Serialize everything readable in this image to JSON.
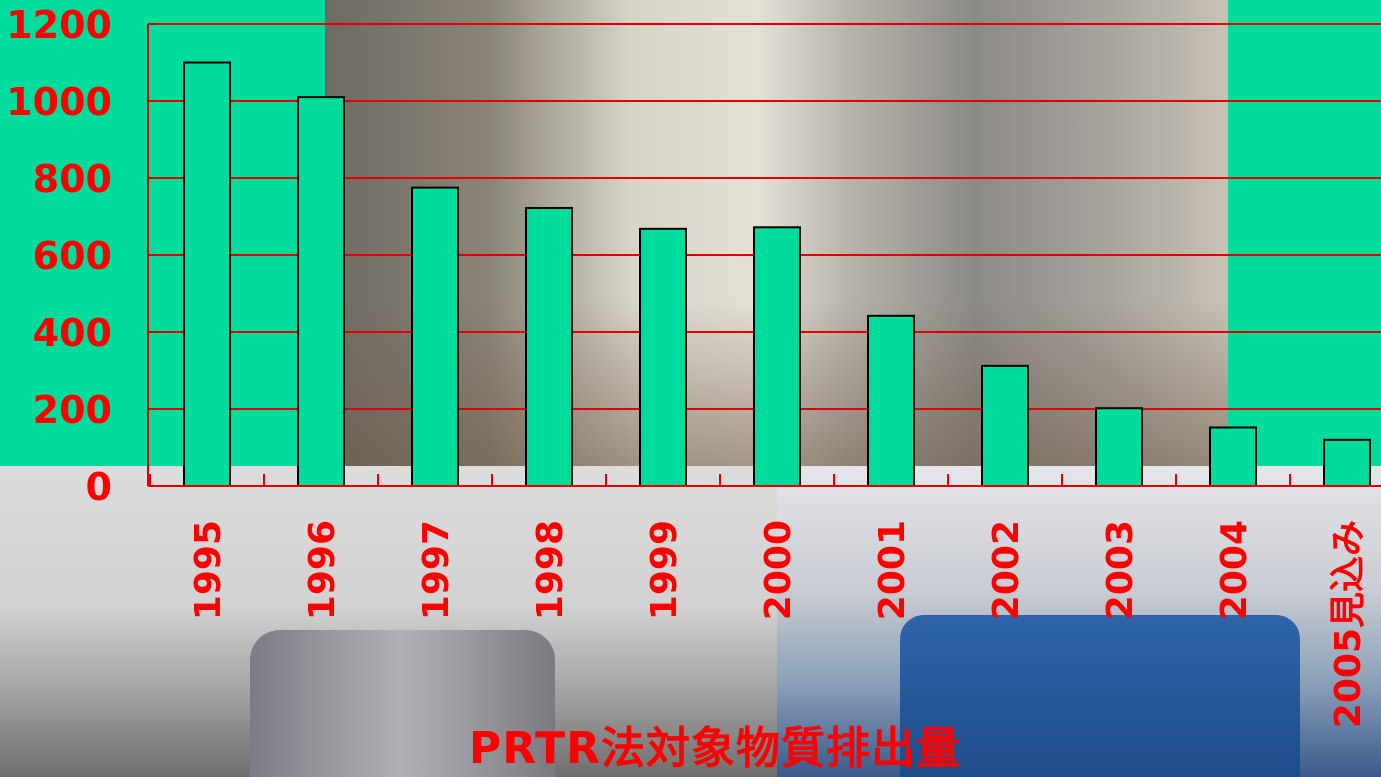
{
  "chart_data": {
    "type": "bar",
    "title": "PRTR法対象物質排出量",
    "xlabel": "",
    "ylabel": "",
    "categories": [
      "1995",
      "1996",
      "1997",
      "1998",
      "1999",
      "2000",
      "2001",
      "2002",
      "2003",
      "2004",
      "2005見込み"
    ],
    "values": [
      1100,
      1010,
      775,
      722,
      668,
      672,
      442,
      312,
      202,
      152,
      120
    ],
    "ylim": [
      0,
      1200
    ],
    "yticks": [
      "0",
      "200",
      "400",
      "600",
      "800",
      "1000",
      "1200"
    ],
    "grid": true,
    "legend": "none",
    "colors": {
      "bar": "#00dc9c",
      "bar_edge": "#000000",
      "grid": "#e00000",
      "axis": "#e00000",
      "tick_label": "#ff0000",
      "background": "#00dc9c"
    }
  }
}
